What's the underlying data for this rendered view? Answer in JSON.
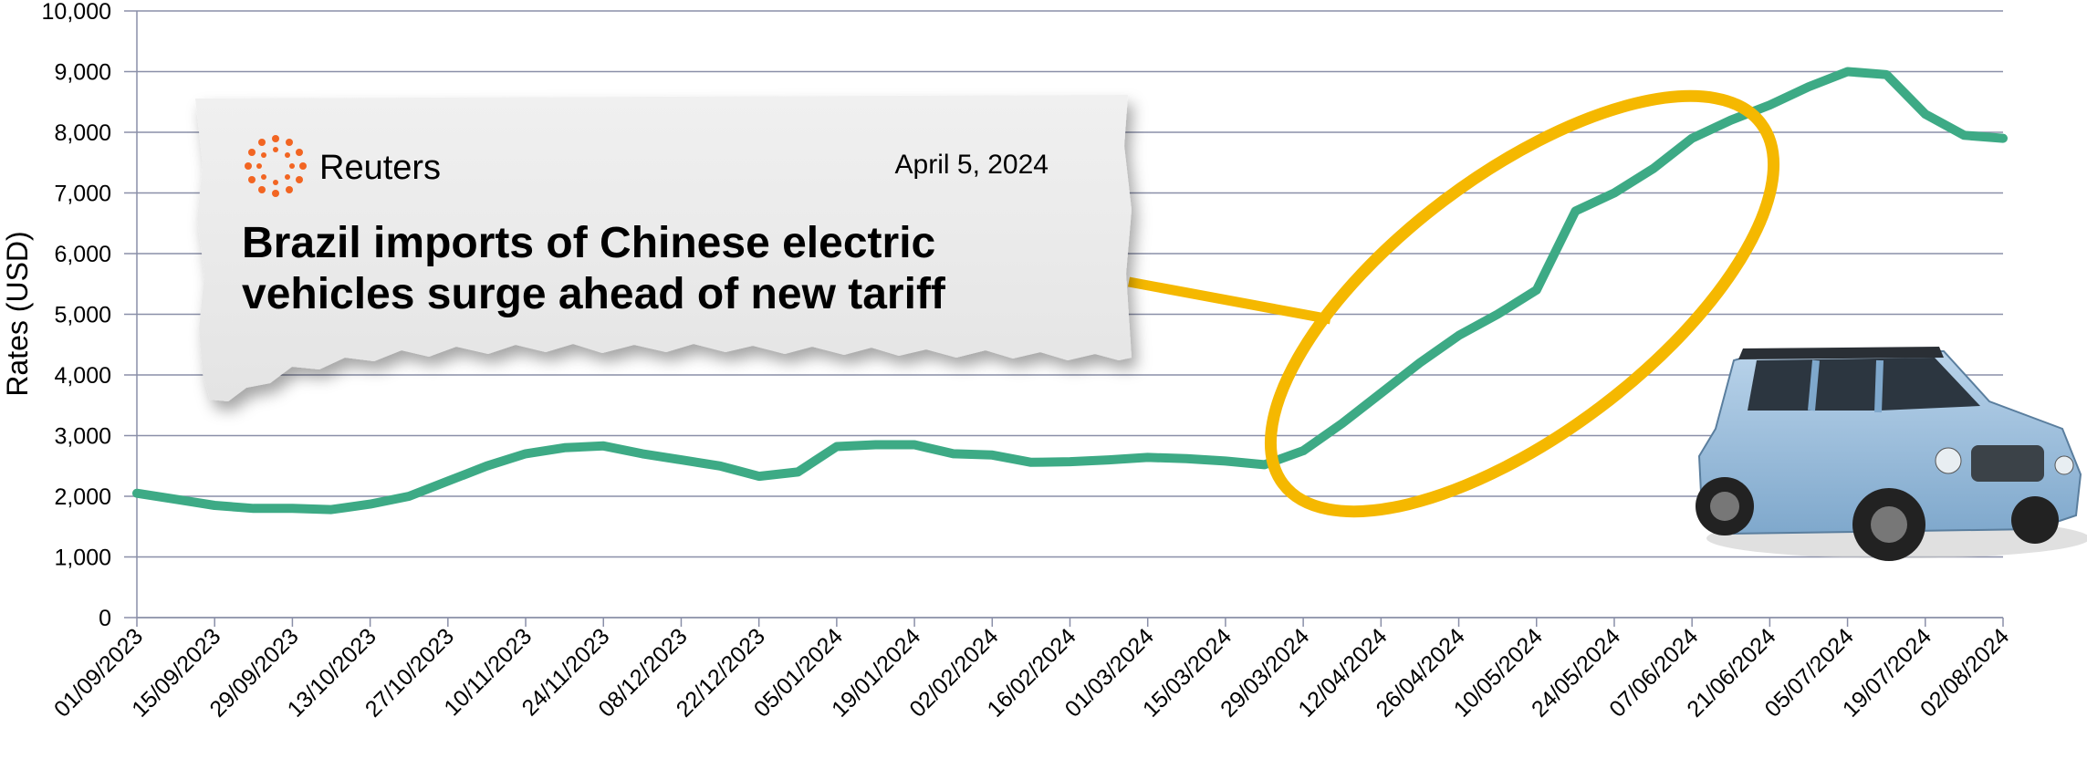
{
  "chart_data": {
    "type": "line",
    "y_label": "Rates (USD)",
    "categories": [
      "01/09/2023",
      null,
      "15/09/2023",
      null,
      "29/09/2023",
      null,
      "13/10/2023",
      null,
      "27/10/2023",
      null,
      "10/11/2023",
      null,
      "24/11/2023",
      null,
      "08/12/2023",
      null,
      "22/12/2023",
      null,
      "05/01/2024",
      null,
      "19/01/2024",
      null,
      "02/02/2024",
      null,
      "16/02/2024",
      null,
      "01/03/2024",
      null,
      "15/03/2024",
      null,
      "29/03/2024",
      null,
      "12/04/2024",
      null,
      "26/04/2024",
      null,
      "10/05/2024",
      null,
      "24/05/2024",
      null,
      "07/06/2024",
      null,
      "21/06/2024",
      null,
      "05/07/2024",
      null,
      "19/07/2024",
      null,
      "02/08/2024"
    ],
    "values": [
      2050,
      1950,
      1850,
      1800,
      1800,
      1780,
      1870,
      2000,
      2250,
      2500,
      2700,
      2800,
      2830,
      2700,
      2600,
      2500,
      2330,
      2400,
      2820,
      2850,
      2850,
      2700,
      2680,
      2560,
      2570,
      2600,
      2640,
      2620,
      2580,
      2520,
      2750,
      3200,
      3700,
      4200,
      4650,
      5000,
      5400,
      6700,
      7000,
      7400,
      7900,
      8200,
      8450,
      8750,
      9000,
      8950,
      8300,
      7950,
      7900
    ],
    "color": "#3daa85",
    "ylim": [
      0,
      10000
    ],
    "yticks": [
      0,
      {
        "value": 1000,
        "label": "1,000"
      },
      {
        "value": 2000,
        "label": "2,000"
      },
      {
        "value": 3000,
        "label": "3,000"
      },
      {
        "value": 4000,
        "label": "4,000"
      },
      {
        "value": 5000,
        "label": "5,000"
      },
      {
        "value": 6000,
        "label": "6,000"
      },
      {
        "value": 7000,
        "label": "7,000"
      },
      {
        "value": 8000,
        "label": "8,000"
      },
      {
        "value": 9000,
        "label": "9,000"
      },
      {
        "value": 10000,
        "label": "10,000"
      }
    ],
    "grid": true,
    "clipping": {
      "source": "Reuters",
      "date": "April 5, 2024",
      "headline": [
        "Brazil imports of Chinese electric",
        "vehicles surge ahead of new tariff"
      ]
    }
  }
}
